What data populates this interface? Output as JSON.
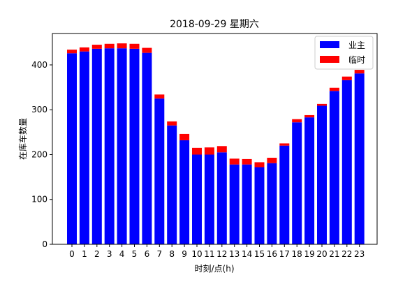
{
  "chart_data": {
    "type": "bar",
    "stacked": true,
    "title": "2018-09-29 星期六",
    "xlabel": "时刻/点(h)",
    "ylabel": "在库车数量",
    "categories": [
      "0",
      "1",
      "2",
      "3",
      "4",
      "5",
      "6",
      "7",
      "8",
      "9",
      "10",
      "11",
      "12",
      "13",
      "14",
      "15",
      "16",
      "17",
      "18",
      "19",
      "20",
      "21",
      "22",
      "23"
    ],
    "ylim": [
      0,
      470
    ],
    "yticks": [
      0,
      100,
      200,
      300,
      400
    ],
    "grid": false,
    "legend_position": "upper right",
    "series": [
      {
        "name": "业主",
        "color": "#0000ff",
        "values": [
          426,
          430,
          436,
          437,
          437,
          436,
          427,
          325,
          265,
          232,
          200,
          200,
          205,
          178,
          178,
          172,
          181,
          220,
          272,
          283,
          309,
          342,
          366,
          381
        ]
      },
      {
        "name": "临时",
        "color": "#ff0000",
        "values": [
          8,
          9,
          9,
          10,
          11,
          11,
          11,
          9,
          9,
          14,
          15,
          16,
          14,
          13,
          12,
          11,
          12,
          5,
          7,
          5,
          4,
          7,
          8,
          8
        ]
      }
    ]
  }
}
